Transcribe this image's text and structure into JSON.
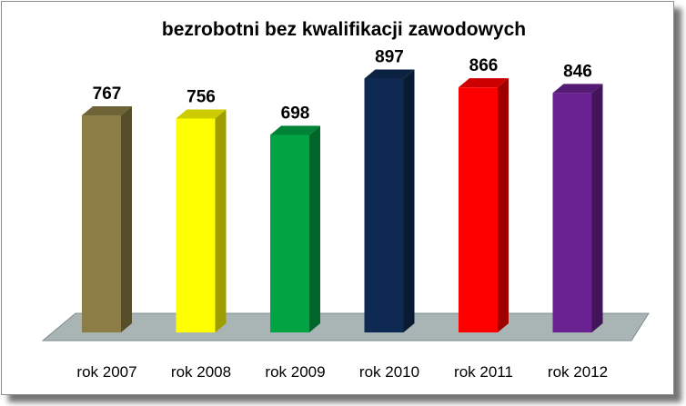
{
  "chart_data": {
    "type": "bar",
    "title": "bezrobotni bez kwalifikacji zawodowych",
    "xlabel": "",
    "ylabel": "",
    "categories": [
      "rok 2007",
      "rok 2008",
      "rok 2009",
      "rok 2010",
      "rok 2011",
      "rok 2012"
    ],
    "values": [
      767,
      756,
      698,
      897,
      866,
      846
    ],
    "colors": [
      "#8b7d45",
      "#ffff00",
      "#00a443",
      "#0e2a52",
      "#ff0000",
      "#6a2191"
    ],
    "ylim": [
      0,
      950
    ],
    "grid": false,
    "legend": "none",
    "data_labels": true,
    "style": "3d-column"
  }
}
